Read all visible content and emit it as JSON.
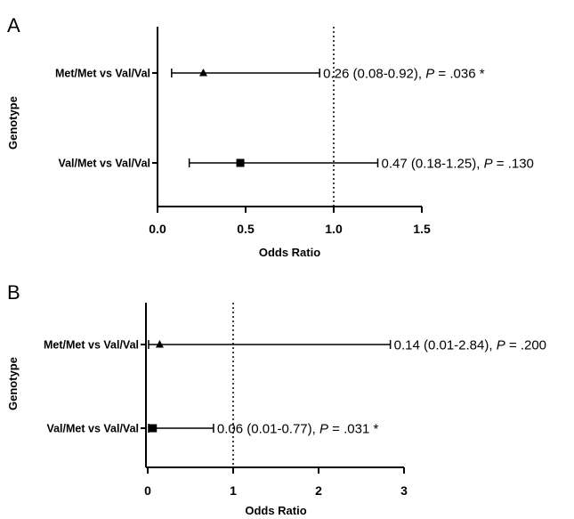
{
  "chart_data": [
    {
      "type": "forest",
      "panel_label": "A",
      "xlabel": "Odds Ratio",
      "ylabel": "Genotype",
      "xlim": [
        0,
        1.5
      ],
      "xticks": [
        {
          "value": 0,
          "label": "0.0"
        },
        {
          "value": 0.5,
          "label": "0.5"
        },
        {
          "value": 1.0,
          "label": "1.0"
        },
        {
          "value": 1.5,
          "label": "1.5"
        }
      ],
      "reference_line": 1,
      "rows": [
        {
          "label": "Met/Met vs Val/Val",
          "or": 0.26,
          "lo": 0.08,
          "hi": 0.92,
          "marker": "triangle",
          "annot_main": "0.26 (0.08-0.92), ",
          "annot_p": "P",
          "annot_rest": " = .036 *"
        },
        {
          "label": "Val/Met vs Val/Val",
          "or": 0.47,
          "lo": 0.18,
          "hi": 1.25,
          "marker": "square",
          "annot_main": "0.47 (0.18-1.25), ",
          "annot_p": "P",
          "annot_rest": " = .130"
        }
      ]
    },
    {
      "type": "forest",
      "panel_label": "B",
      "xlabel": "Odds Ratio",
      "ylabel": "Genotype",
      "xlim": [
        0,
        3
      ],
      "xticks": [
        {
          "value": 0,
          "label": "0"
        },
        {
          "value": 1,
          "label": "1"
        },
        {
          "value": 2,
          "label": "2"
        },
        {
          "value": 3,
          "label": "3"
        }
      ],
      "reference_line": 1,
      "rows": [
        {
          "label": "Met/Met vs Val/Val",
          "or": 0.14,
          "lo": 0.01,
          "hi": 2.84,
          "marker": "triangle",
          "annot_main": "0.14 (0.01-2.84), ",
          "annot_p": "P",
          "annot_rest": " = .200"
        },
        {
          "label": "Val/Met vs Val/Val",
          "or": 0.06,
          "lo": 0.01,
          "hi": 0.77,
          "marker": "square",
          "annot_main": "0.06 (0.01-0.77), ",
          "annot_p": "P",
          "annot_rest": " = .031 *"
        }
      ]
    }
  ]
}
